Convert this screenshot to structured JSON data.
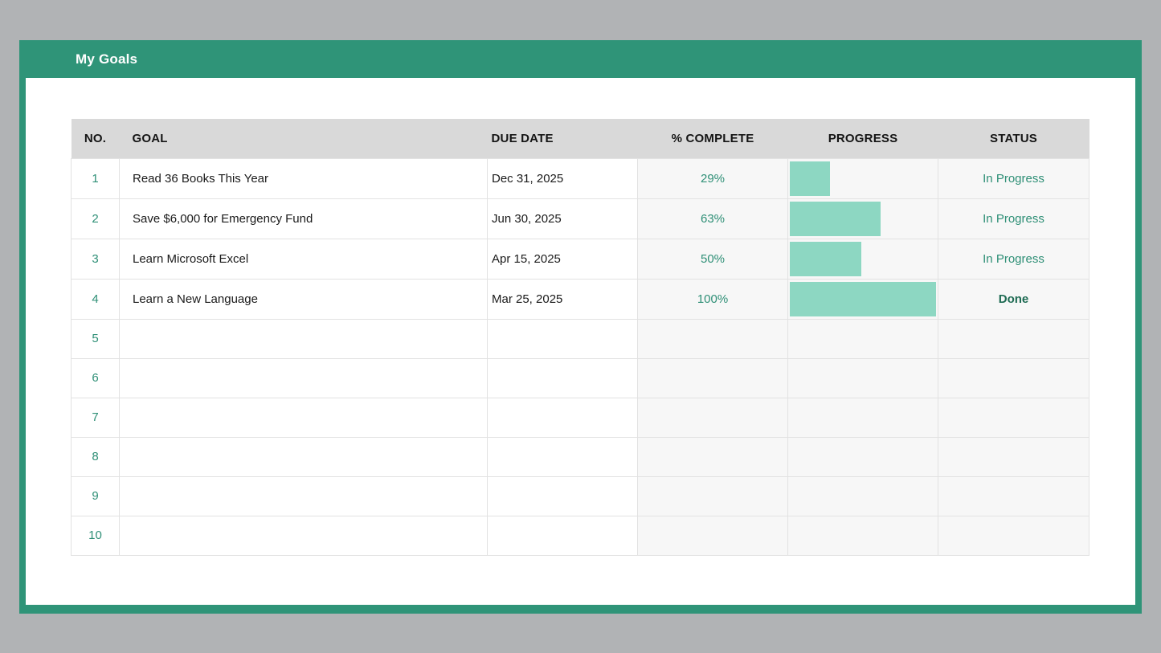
{
  "window": {
    "title": "My Goals"
  },
  "theme": {
    "frame_green": "#2F9478",
    "page_gray": "#B1B3B5",
    "header_row_gray": "#D9D9D9",
    "bar_mint": "#8DD7C2",
    "teal_text": "#2E8F76",
    "done_green": "#1D6A52"
  },
  "table": {
    "columns": [
      {
        "label": "NO."
      },
      {
        "label": "GOAL"
      },
      {
        "label": "DUE DATE"
      },
      {
        "label": "% COMPLETE"
      },
      {
        "label": "PROGRESS"
      },
      {
        "label": "STATUS"
      }
    ],
    "rows": [
      {
        "no": "1",
        "goal": "Read 36 Books This Year",
        "due_date": "Dec 31, 2025",
        "percent_complete": "29%",
        "progress_percent": 29,
        "status": "In Progress"
      },
      {
        "no": "2",
        "goal": "Save $6,000 for Emergency Fund",
        "due_date": "Jun 30, 2025",
        "percent_complete": "63%",
        "progress_percent": 63,
        "status": "In Progress"
      },
      {
        "no": "3",
        "goal": "Learn Microsoft Excel",
        "due_date": "Apr 15, 2025",
        "percent_complete": "50%",
        "progress_percent": 50,
        "status": "In Progress"
      },
      {
        "no": "4",
        "goal": "Learn a New Language",
        "due_date": "Mar 25, 2025",
        "percent_complete": "100%",
        "progress_percent": 100,
        "status": "Done"
      },
      {
        "no": "5",
        "goal": "",
        "due_date": "",
        "percent_complete": "",
        "progress_percent": null,
        "status": ""
      },
      {
        "no": "6",
        "goal": "",
        "due_date": "",
        "percent_complete": "",
        "progress_percent": null,
        "status": ""
      },
      {
        "no": "7",
        "goal": "",
        "due_date": "",
        "percent_complete": "",
        "progress_percent": null,
        "status": ""
      },
      {
        "no": "8",
        "goal": "",
        "due_date": "",
        "percent_complete": "",
        "progress_percent": null,
        "status": ""
      },
      {
        "no": "9",
        "goal": "",
        "due_date": "",
        "percent_complete": "",
        "progress_percent": null,
        "status": ""
      },
      {
        "no": "10",
        "goal": "",
        "due_date": "",
        "percent_complete": "",
        "progress_percent": null,
        "status": ""
      }
    ]
  }
}
